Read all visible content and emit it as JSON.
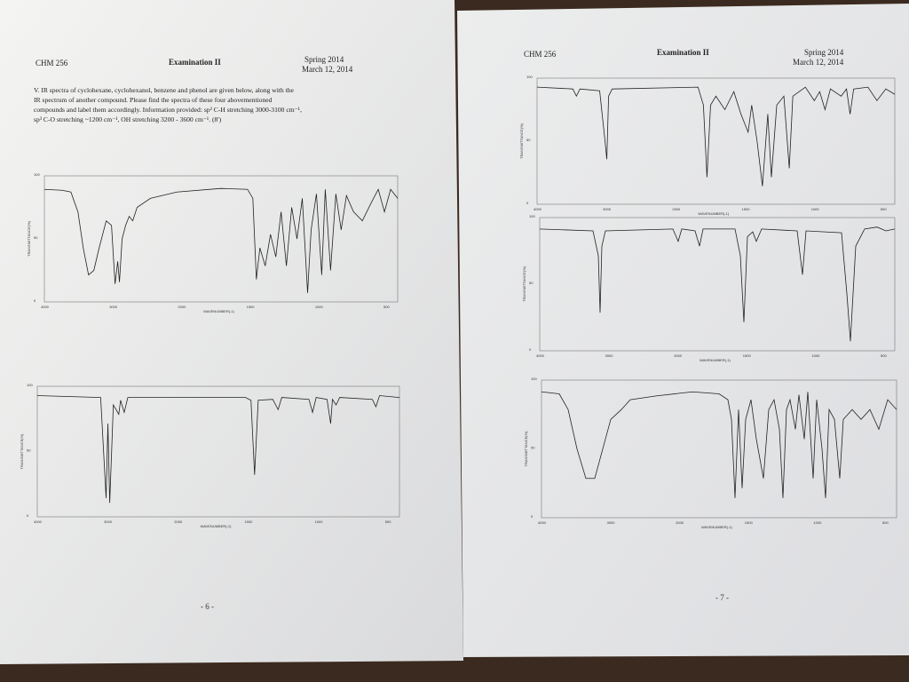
{
  "left_page": {
    "header": {
      "course": "CHM 256",
      "exam": "Examination II",
      "term": "Spring 2014",
      "date": "March 12, 2014"
    },
    "question_lines": [
      "V.  IR spectra of cyclohexane, cyclohexanol, benzene and phenol are given below, along with the",
      "IR spectrum of another compound.  Please find the spectra of these four abovementioned",
      "compounds and label them accordingly.  Information provided: sp² C-H stretching 3000-3100 cm⁻¹,",
      "sp³ C-O stretching ~1200 cm⁻¹, OH stretching 3200 - 3600 cm⁻¹. (8')"
    ],
    "page_number": "- 6 -"
  },
  "right_page": {
    "header": {
      "course": "CHM 256",
      "exam": "Examination II",
      "term": "Spring 2014",
      "date": "March 12, 2014"
    },
    "page_number": "- 7 -"
  },
  "spectrum_axis": {
    "y_labels": [
      "100",
      "50",
      "0"
    ],
    "x_labels": [
      "4000",
      "3000",
      "2000",
      "1500",
      "1000",
      "500"
    ],
    "x_title": "WAVENUMBER(-1)",
    "y_title": "TRANSMITTANCE(%)"
  }
}
